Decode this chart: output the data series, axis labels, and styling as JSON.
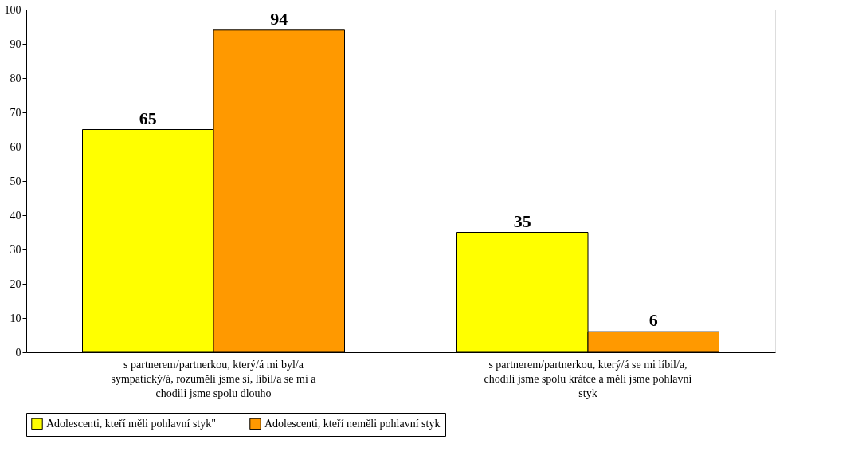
{
  "chart_data": {
    "type": "bar",
    "categories": [
      "s partnerem/partnerkou, který/á mi byl/a sympatický/á, rozuměli jsme si, líbil/a se mi a chodili jsme spolu dlouho",
      "s partnerem/partnerkou, který/á se mi líbil/a, chodili jsme spolu krátce a měli jsme pohlavní styk"
    ],
    "series": [
      {
        "name": "Adolescenti, kteří měli pohlavní styk\"",
        "color": "#ffff00",
        "values": [
          65,
          35
        ]
      },
      {
        "name": "Adolescenti, kteří neměli pohlavní styk",
        "color": "#ff9900",
        "values": [
          94,
          6
        ]
      }
    ],
    "ylim": [
      0,
      100
    ],
    "yticks": [
      0,
      10,
      20,
      30,
      40,
      50,
      60,
      70,
      80,
      90,
      100
    ],
    "data_labels": true,
    "grid": false,
    "legend": "bottom"
  }
}
